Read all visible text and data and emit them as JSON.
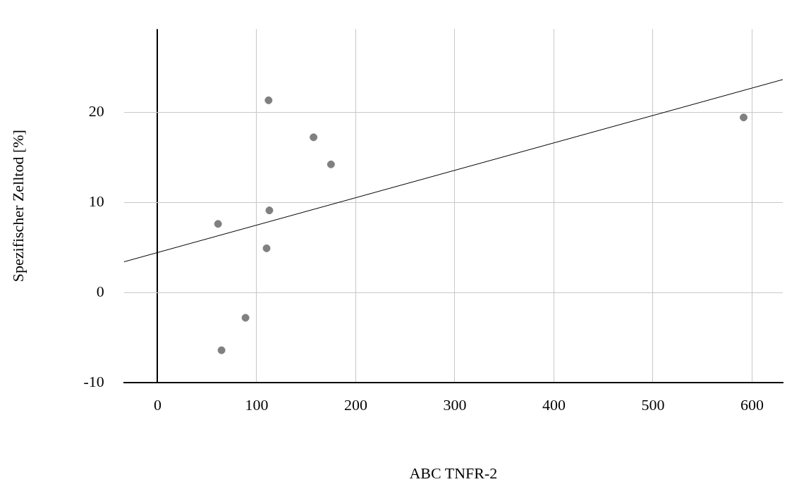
{
  "chart_data": {
    "type": "scatter",
    "xlabel": "ABC TNFR-2",
    "ylabel": "Spezifischer Zelltod [%]",
    "xlim": [
      -34,
      631
    ],
    "ylim": [
      -10,
      29.2
    ],
    "xticks": [
      0,
      100,
      200,
      300,
      400,
      500,
      600
    ],
    "yticks": [
      -10,
      0,
      10,
      20
    ],
    "grid": true,
    "legend": false,
    "marker": "circle",
    "series": [
      {
        "color": "#808080",
        "x": [
          61,
          64.5,
          88.7,
          110,
          112.8,
          112,
          157.4,
          175,
          591.5
        ],
        "values": [
          7.6,
          -6.4,
          -2.8,
          4.9,
          9.1,
          21.3,
          17.2,
          14.2,
          19.4
        ]
      },
      {
        "type": "line",
        "color": "#000000",
        "marker": "none",
        "x": [
          -34,
          631
        ],
        "values": [
          3.4,
          23.6
        ]
      }
    ]
  }
}
